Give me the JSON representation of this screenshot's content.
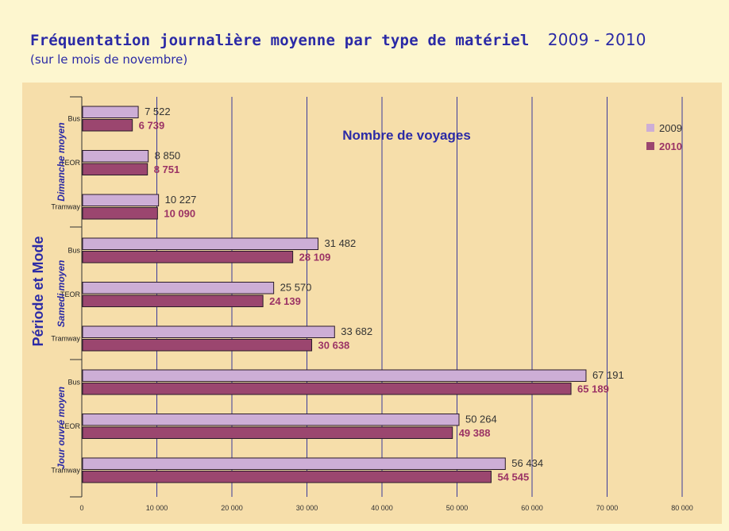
{
  "header": {
    "title": "Fréquentation journalière moyenne par type de matériel",
    "years": "2009 - 2010",
    "subtitle": "(sur le mois de novembre)"
  },
  "colors": {
    "series_2009": "#cdaed6",
    "series_2010": "#9b466f",
    "label_2010": "#9b3365",
    "grid": "#3a3a9a",
    "title": "#2b2aa6",
    "background": "#fdf6cf",
    "chart_background": "#f6deaa"
  },
  "chart_data": {
    "type": "bar",
    "orientation": "horizontal",
    "title": "Nombre de voyages",
    "ylabel": "Période  et  Mode",
    "xlim": [
      0,
      80000
    ],
    "xticks": [
      0,
      10000,
      20000,
      30000,
      40000,
      50000,
      60000,
      70000,
      80000
    ],
    "xtick_labels": [
      "0",
      "10 000",
      "20 000",
      "30 000",
      "40 000",
      "50 000",
      "60 000",
      "70 000",
      "80 000"
    ],
    "grid": true,
    "legend_position": "top-right",
    "groups": [
      "Dimanche moyen",
      "Samedi moyen",
      "Jour ouvré moyen"
    ],
    "categories": [
      "Bus",
      "TEOR",
      "Tramway",
      "Bus",
      "TEOR",
      "Tramway",
      "Bus",
      "TEOR",
      "Tramway"
    ],
    "category_groups": [
      0,
      0,
      0,
      1,
      1,
      1,
      2,
      2,
      2
    ],
    "series": [
      {
        "name": "2009",
        "values": [
          7522,
          8850,
          10227,
          31482,
          25570,
          33682,
          67191,
          50264,
          56434
        ],
        "labels": [
          "7 522",
          "8 850",
          "10 227",
          "31 482",
          "25 570",
          "33 682",
          "67 191",
          "50 264",
          "56 434"
        ]
      },
      {
        "name": "2010",
        "values": [
          6739,
          8751,
          10090,
          28109,
          24139,
          30638,
          65189,
          49388,
          54545
        ],
        "labels": [
          "6 739",
          "8 751",
          "10 090",
          "28 109",
          "24 139",
          "30 638",
          "65 189",
          "49 388",
          "54 545"
        ]
      }
    ]
  }
}
